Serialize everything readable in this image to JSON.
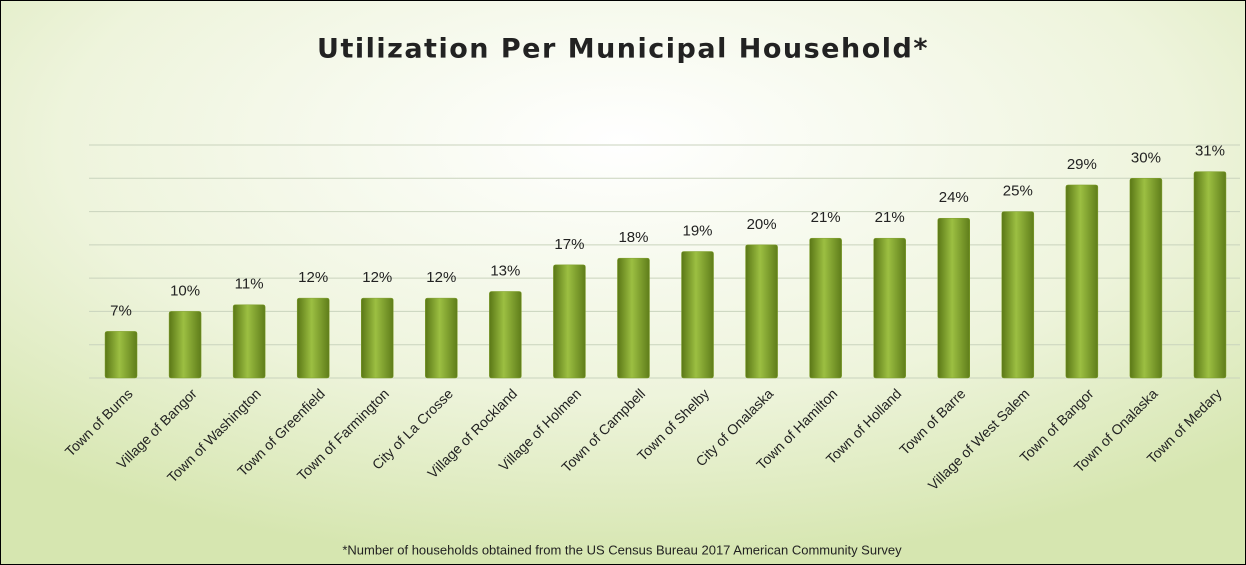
{
  "chart_data": {
    "type": "bar",
    "title": "Utilization Per Municipal Household*",
    "footnote": "*Number of households obtained from the US Census Bureau 2017 American Community Survey",
    "categories": [
      "Town of Burns",
      "Village of Bangor",
      "Town of Washington",
      "Town of Greenfield",
      "Town of Farmington",
      "City of La Crosse",
      "Village of Rockland",
      "Village of Holmen",
      "Town of Campbell",
      "Town of Shelby",
      "City of Onalaska",
      "Town of Hamilton",
      "Town of Holland",
      "Town of Barre",
      "Village of West Salem",
      "Town of Bangor",
      "Town of Onalaska",
      "Town of Medary"
    ],
    "values": [
      7,
      10,
      11,
      12,
      12,
      12,
      13,
      17,
      18,
      19,
      20,
      21,
      21,
      24,
      25,
      29,
      30,
      31
    ],
    "value_labels": [
      "7%",
      "10%",
      "11%",
      "12%",
      "12%",
      "12%",
      "13%",
      "17%",
      "18%",
      "19%",
      "20%",
      "21%",
      "21%",
      "24%",
      "25%",
      "29%",
      "30%",
      "31%"
    ],
    "color": "#7f9f2a",
    "ylim": [
      0,
      35
    ],
    "yticks": [
      0,
      5,
      10,
      15,
      20,
      25,
      30,
      35
    ],
    "grid": true
  }
}
